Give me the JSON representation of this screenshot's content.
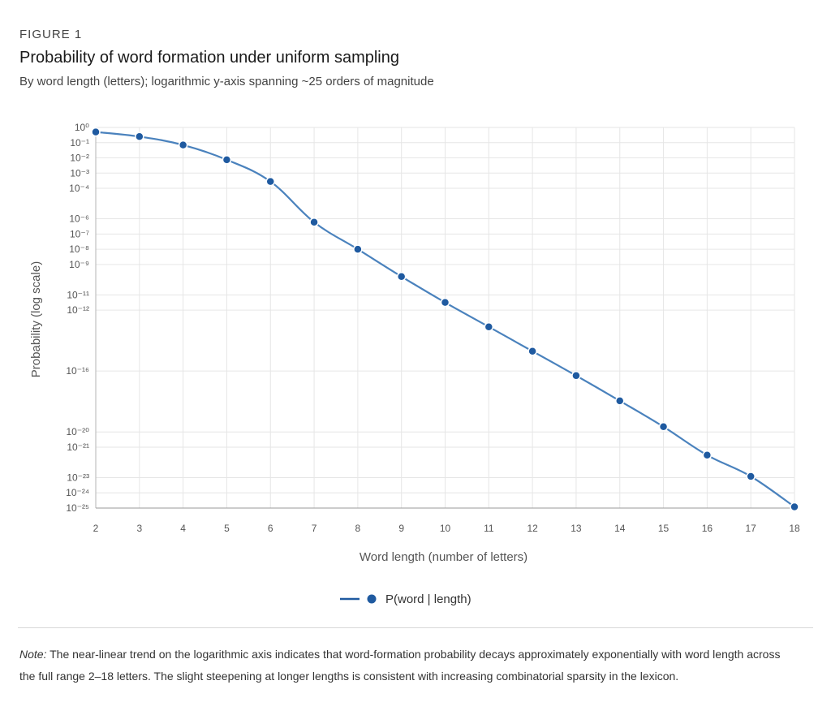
{
  "figure": {
    "label": "FIGURE 1",
    "title": "Probability of word formation under uniform sampling",
    "subtitle": "By word length (letters); logarithmic y-axis spanning ~25 orders of magnitude"
  },
  "note": {
    "label": "Note:",
    "text": " The near-linear trend on the logarithmic axis indicates that word-formation probability decays approximately exponentially with word length across the full range 2–18 letters. The slight steepening at longer lengths is consistent with increasing combinatorial sparsity in the lexicon."
  },
  "chart_data": {
    "type": "line",
    "xlabel": "Word length (number of letters)",
    "ylabel": "Probability (log scale)",
    "yscale": "log",
    "xlim": [
      2,
      18
    ],
    "ylim": [
      1e-25,
      1
    ],
    "grid": true,
    "legend_position": "bottom-center",
    "x_ticks": [
      2,
      3,
      4,
      5,
      6,
      7,
      8,
      9,
      10,
      11,
      12,
      13,
      14,
      15,
      16,
      17,
      18
    ],
    "y_ticks": [
      {
        "exp": 0,
        "label": "10⁰"
      },
      {
        "exp": -1,
        "label": "10⁻¹"
      },
      {
        "exp": -2,
        "label": "10⁻²"
      },
      {
        "exp": -3,
        "label": "10⁻³"
      },
      {
        "exp": -4,
        "label": "10⁻⁴"
      },
      {
        "exp": -6,
        "label": "10⁻⁶"
      },
      {
        "exp": -7,
        "label": "10⁻⁷"
      },
      {
        "exp": -8,
        "label": "10⁻⁸"
      },
      {
        "exp": -9,
        "label": "10⁻⁹"
      },
      {
        "exp": -11,
        "label": "10⁻¹¹"
      },
      {
        "exp": -12,
        "label": "10⁻¹²"
      },
      {
        "exp": -16,
        "label": "10⁻¹⁶"
      },
      {
        "exp": -20,
        "label": "10⁻²⁰"
      },
      {
        "exp": -21,
        "label": "10⁻²¹"
      },
      {
        "exp": -23,
        "label": "10⁻²³"
      },
      {
        "exp": -24,
        "label": "10⁻²⁴"
      },
      {
        "exp": -25,
        "label": "10⁻²⁵"
      }
    ],
    "series": [
      {
        "name": "P(word | length)",
        "color": "#4a82bd",
        "marker_color": "#1f5aa0",
        "x": [
          2,
          3,
          4,
          5,
          6,
          7,
          8,
          9,
          10,
          11,
          12,
          13,
          14,
          15,
          16,
          17,
          18
        ],
        "y": [
          0.5,
          0.25,
          0.07,
          0.0075,
          0.00028,
          6e-07,
          1e-08,
          1.6e-10,
          3.2e-12,
          8e-14,
          2e-15,
          5e-17,
          1.1e-18,
          2.2e-20,
          3e-22,
          1.2e-23,
          1.2e-25
        ]
      }
    ]
  }
}
